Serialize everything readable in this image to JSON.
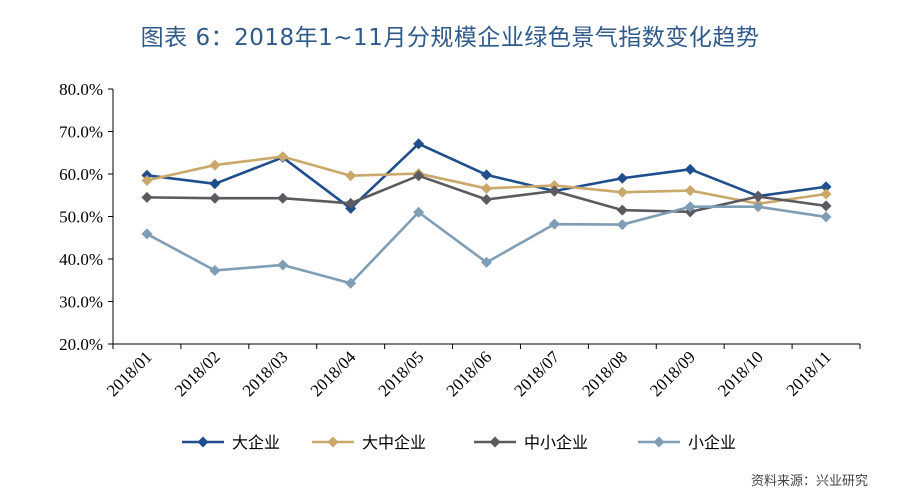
{
  "title": "图表 6：2018年1~11月分规模企业绿色景气指数变化趋势",
  "source": "资料来源：兴业研究",
  "chart_data": {
    "type": "line",
    "title": "图表 6：2018年1~11月分规模企业绿色景气指数变化趋势",
    "xlabel": "",
    "ylabel": "",
    "ylim": [
      20,
      80
    ],
    "yticks": [
      "20.0%",
      "30.0%",
      "40.0%",
      "50.0%",
      "60.0%",
      "70.0%",
      "80.0%"
    ],
    "grid": false,
    "legend_position": "bottom",
    "categories": [
      "2018/01",
      "2018/02",
      "2018/03",
      "2018/04",
      "2018/05",
      "2018/06",
      "2018/07",
      "2018/08",
      "2018/09",
      "2018/10",
      "2018/11"
    ],
    "series": [
      {
        "name": "大企业",
        "color": "#1f4e8c",
        "values": [
          59.7,
          57.7,
          63.9,
          51.9,
          67.1,
          59.8,
          56.0,
          59.0,
          61.1,
          54.8,
          57.0
        ]
      },
      {
        "name": "大中企业",
        "color": "#c9a86a",
        "values": [
          58.5,
          62.1,
          64.1,
          59.6,
          60.1,
          56.6,
          57.3,
          55.7,
          56.1,
          53.0,
          55.3
        ]
      },
      {
        "name": "中小企业",
        "color": "#5a5a5f",
        "values": [
          54.5,
          54.3,
          54.3,
          53.1,
          59.6,
          54.0,
          56.0,
          51.5,
          51.1,
          54.7,
          52.5
        ]
      },
      {
        "name": "小企业",
        "color": "#7f9db5",
        "values": [
          45.9,
          37.3,
          38.6,
          34.3,
          51.0,
          39.2,
          48.2,
          48.1,
          52.3,
          52.3,
          49.9
        ]
      }
    ]
  }
}
